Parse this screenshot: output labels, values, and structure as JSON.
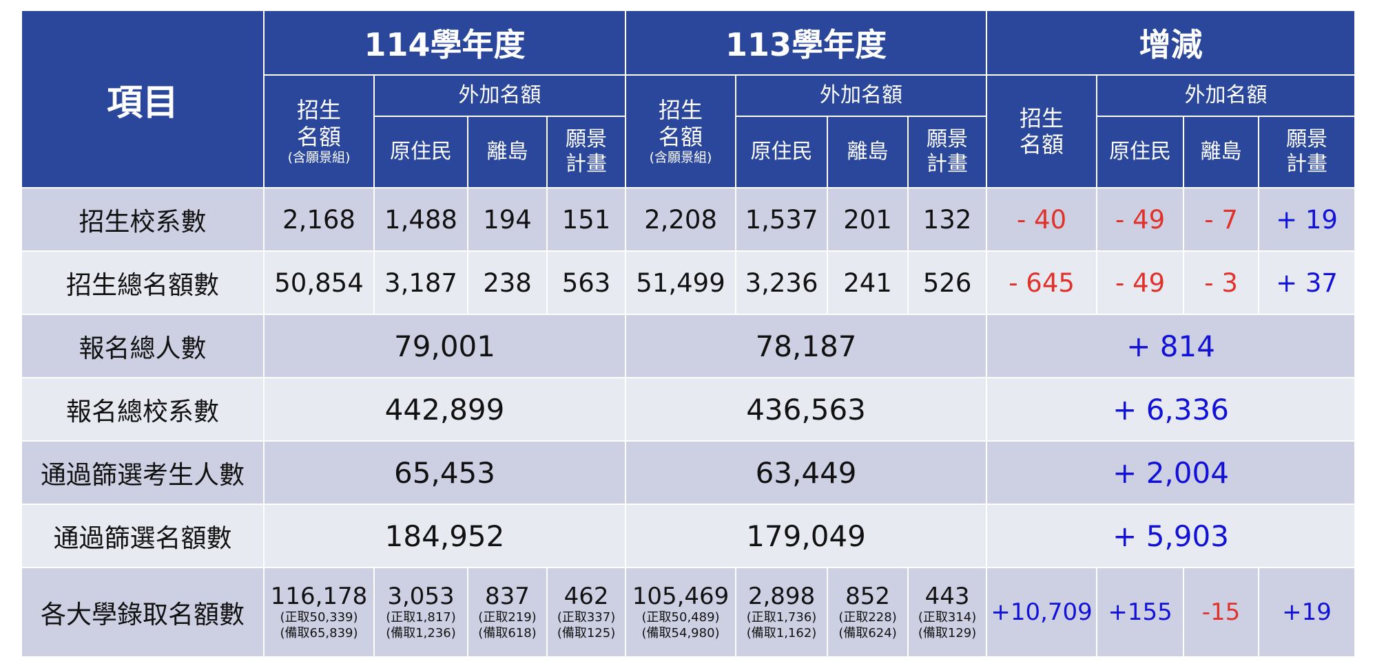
{
  "header": {
    "item": "項目",
    "year_114": "114學年度",
    "year_113": "113學年度",
    "change": "增減",
    "quota_line1": "招生",
    "quota_line2": "名額",
    "quota_note": "(含願景組)",
    "extra": "外加名額",
    "indigenous": "原住民",
    "island": "離島",
    "vision_line1": "願景",
    "vision_line2": "計畫"
  },
  "rows": [
    {
      "label": "招生校系數",
      "y114": [
        "2,168",
        "1,488",
        "194",
        "151"
      ],
      "y113": [
        "2,208",
        "1,537",
        "201",
        "132"
      ],
      "diff": [
        "- 40",
        "- 49",
        "- 7",
        "+ 19"
      ]
    },
    {
      "label": "招生總名額數",
      "y114": [
        "50,854",
        "3,187",
        "238",
        "563"
      ],
      "y113": [
        "51,499",
        "3,236",
        "241",
        "526"
      ],
      "diff": [
        "- 645",
        "- 49",
        "- 3",
        "+ 37"
      ]
    },
    {
      "label": "報名總人數",
      "y114": "79,001",
      "y113": "78,187",
      "diff": "+ 814"
    },
    {
      "label": "報名總校系數",
      "y114": "442,899",
      "y113": "436,563",
      "diff": "+ 6,336"
    },
    {
      "label": "通過篩選考生人數",
      "y114": "65,453",
      "y113": "63,449",
      "diff": "+ 2,004"
    },
    {
      "label": "通過篩選名額數",
      "y114": "184,952",
      "y113": "179,049",
      "diff": "+ 5,903"
    },
    {
      "label": "各大學錄取名額數",
      "y114": [
        {
          "main": "116,178",
          "a": "(正取50,339)",
          "b": "(備取65,839)"
        },
        {
          "main": "3,053",
          "a": "(正取1,817)",
          "b": "(備取1,236)"
        },
        {
          "main": "837",
          "a": "(正取219)",
          "b": "(備取618)"
        },
        {
          "main": "462",
          "a": "(正取337)",
          "b": "(備取125)"
        }
      ],
      "y113": [
        {
          "main": "105,469",
          "a": "(正取50,489)",
          "b": "(備取54,980)"
        },
        {
          "main": "2,898",
          "a": "(正取1,736)",
          "b": "(備取1,162)"
        },
        {
          "main": "852",
          "a": "(正取228)",
          "b": "(備取624)"
        },
        {
          "main": "443",
          "a": "(正取314)",
          "b": "(備取129)"
        }
      ],
      "diff": [
        "+10,709",
        "+155",
        "-15",
        "+19"
      ]
    }
  ],
  "colors": {
    "header_bg": "#2b479c",
    "row_dark": "#cdd0e3",
    "row_light": "#e8eaf2",
    "negative": "#e0312a",
    "positive": "#1111d8"
  }
}
